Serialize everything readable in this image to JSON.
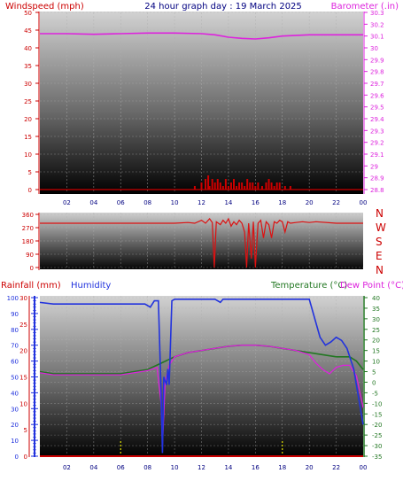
{
  "colors": {
    "wind": "#cc0000",
    "baro": "#dd22dd",
    "winddir": "#dd1111",
    "humidity": "#2233dd",
    "temp": "#227722",
    "dew": "#dd22dd",
    "rain": "#cc0000",
    "title": "#000080",
    "grid": "#b0b0b0"
  },
  "top": {
    "title": "24 hour graph day : 19 March 2025",
    "left_label": "Windspeed (mph)",
    "right_label": "Barometer (.in)"
  },
  "middle": {
    "dir_labels": [
      "N",
      "W",
      "S",
      "E",
      "N"
    ]
  },
  "bottom": {
    "rain_label": "Rainfall (mm)",
    "hum_label": "Humidity",
    "temp_label": "Temperature (°C)",
    "dew_label": "Dew Point (°C)"
  },
  "chart_data": [
    {
      "type": "line",
      "title": "24 hour graph day : 19 March 2025",
      "xlim": [
        0,
        24
      ],
      "x_ticks": [
        "02",
        "04",
        "06",
        "08",
        "10",
        "12",
        "14",
        "16",
        "18",
        "20",
        "22",
        "00"
      ],
      "left_axis": {
        "label": "Windspeed (mph)",
        "ticks": [
          0,
          5,
          10,
          15,
          20,
          25,
          30,
          35,
          40,
          45,
          50
        ],
        "ylim": [
          0,
          50
        ]
      },
      "right_axis": {
        "label": "Barometer (.in)",
        "ticks": [
          28.8,
          28.9,
          29.0,
          29.1,
          29.2,
          29.3,
          29.4,
          29.5,
          29.6,
          29.7,
          29.8,
          29.9,
          30.0,
          30.1,
          30.2,
          30.3
        ],
        "tick_labels": [
          "28.8",
          "28.9",
          "29",
          "29.1",
          "29.2",
          "29.3",
          "29.4",
          "29.5",
          "29.6",
          "29.7",
          "29.8",
          "29.9",
          "30",
          "30.1",
          "30.2",
          "30.3"
        ],
        "ylim": [
          28.8,
          30.3
        ]
      },
      "series": [
        {
          "name": "Barometer (.in)",
          "axis": "right",
          "points": [
            [
              0,
              30.12
            ],
            [
              2,
              30.12
            ],
            [
              4,
              30.115
            ],
            [
              6,
              30.12
            ],
            [
              8,
              30.125
            ],
            [
              10,
              30.125
            ],
            [
              12,
              30.12
            ],
            [
              13,
              30.11
            ],
            [
              14,
              30.09
            ],
            [
              15,
              30.08
            ],
            [
              16,
              30.075
            ],
            [
              17,
              30.085
            ],
            [
              18,
              30.1
            ],
            [
              20,
              30.11
            ],
            [
              22,
              30.11
            ],
            [
              24,
              30.11
            ]
          ]
        },
        {
          "name": "Windspeed (mph)",
          "axis": "left",
          "points": [
            [
              11.5,
              1
            ],
            [
              12.0,
              2
            ],
            [
              12.3,
              3
            ],
            [
              12.5,
              4
            ],
            [
              12.6,
              1
            ],
            [
              12.8,
              3
            ],
            [
              13.0,
              2
            ],
            [
              13.2,
              3
            ],
            [
              13.4,
              2
            ],
            [
              13.6,
              1
            ],
            [
              13.8,
              3
            ],
            [
              14.0,
              1
            ],
            [
              14.2,
              2
            ],
            [
              14.4,
              3
            ],
            [
              14.6,
              1
            ],
            [
              14.8,
              2
            ],
            [
              15.0,
              2
            ],
            [
              15.2,
              1
            ],
            [
              15.4,
              3
            ],
            [
              15.6,
              2
            ],
            [
              15.8,
              2
            ],
            [
              16.0,
              1
            ],
            [
              16.2,
              2
            ],
            [
              16.5,
              1
            ],
            [
              16.8,
              2
            ],
            [
              17.0,
              3
            ],
            [
              17.2,
              2
            ],
            [
              17.4,
              1
            ],
            [
              17.6,
              2
            ],
            [
              17.8,
              2
            ],
            [
              18.2,
              1
            ],
            [
              18.6,
              1
            ]
          ]
        }
      ]
    },
    {
      "type": "line",
      "title": "",
      "xlim": [
        0,
        24
      ],
      "left_axis": {
        "label": "",
        "ticks": [
          0,
          90,
          180,
          270,
          360
        ],
        "ylim": [
          0,
          360
        ]
      },
      "right_axis": {
        "label": "",
        "tick_labels": [
          "N",
          "W",
          "S",
          "E",
          "N"
        ]
      },
      "series": [
        {
          "name": "",
          "points": [
            [
              0,
              300
            ],
            [
              2,
              300
            ],
            [
              4,
              300
            ],
            [
              6,
              300
            ],
            [
              8,
              300
            ],
            [
              10,
              300
            ],
            [
              11.0,
              305
            ],
            [
              11.5,
              300
            ],
            [
              12.0,
              320
            ],
            [
              12.3,
              300
            ],
            [
              12.6,
              330
            ],
            [
              12.8,
              305
            ],
            [
              12.95,
              0
            ],
            [
              13.1,
              310
            ],
            [
              13.4,
              290
            ],
            [
              13.6,
              320
            ],
            [
              13.8,
              300
            ],
            [
              14.0,
              330
            ],
            [
              14.2,
              280
            ],
            [
              14.4,
              310
            ],
            [
              14.6,
              290
            ],
            [
              14.8,
              320
            ],
            [
              15.0,
              300
            ],
            [
              15.2,
              240
            ],
            [
              15.35,
              0
            ],
            [
              15.5,
              300
            ],
            [
              15.7,
              60
            ],
            [
              15.85,
              310
            ],
            [
              16.0,
              0
            ],
            [
              16.2,
              300
            ],
            [
              16.4,
              320
            ],
            [
              16.6,
              200
            ],
            [
              16.8,
              310
            ],
            [
              17.0,
              290
            ],
            [
              17.2,
              200
            ],
            [
              17.4,
              310
            ],
            [
              17.6,
              300
            ],
            [
              17.8,
              320
            ],
            [
              18.0,
              310
            ],
            [
              18.2,
              240
            ],
            [
              18.4,
              310
            ],
            [
              18.6,
              300
            ],
            [
              19.0,
              305
            ],
            [
              19.5,
              310
            ],
            [
              20.0,
              305
            ],
            [
              20.5,
              310
            ],
            [
              22,
              300
            ],
            [
              24,
              300
            ]
          ]
        }
      ]
    },
    {
      "type": "line",
      "title": "",
      "xlim": [
        0,
        24
      ],
      "x_ticks": [
        "02",
        "04",
        "06",
        "08",
        "10",
        "12",
        "14",
        "16",
        "18",
        "20",
        "22",
        "00"
      ],
      "left_axis": {
        "label": "Rainfall (mm) Humidity",
        "ticks": [
          0,
          5,
          10,
          15,
          20,
          25,
          30
        ],
        "humidity_ticks": [
          0,
          10,
          20,
          30,
          40,
          50,
          60,
          70,
          80,
          90,
          100
        ],
        "ylim": [
          0,
          30
        ]
      },
      "right_axis": {
        "label": "Temperature (°C) Dew Point (°C)",
        "ticks": [
          -35,
          -30,
          -25,
          -20,
          -15,
          -10,
          -5,
          0,
          5,
          10,
          15,
          20,
          25,
          30,
          35,
          40
        ],
        "ylim": [
          -35,
          40
        ]
      },
      "series": [
        {
          "name": "Humidity",
          "axis": "humidity",
          "points": [
            [
              0,
              97
            ],
            [
              1,
              96
            ],
            [
              2,
              96
            ],
            [
              4,
              96
            ],
            [
              6,
              96
            ],
            [
              7,
              96
            ],
            [
              7.8,
              96
            ],
            [
              8.2,
              94
            ],
            [
              8.5,
              98
            ],
            [
              8.8,
              98
            ],
            [
              9.0,
              40
            ],
            [
              9.1,
              2
            ],
            [
              9.2,
              50
            ],
            [
              9.4,
              45
            ],
            [
              9.5,
              55
            ],
            [
              9.6,
              45
            ],
            [
              9.8,
              98
            ],
            [
              10,
              99
            ],
            [
              12,
              99
            ],
            [
              13,
              99
            ],
            [
              13.4,
              97
            ],
            [
              13.6,
              99
            ],
            [
              16,
              99
            ],
            [
              18,
              99
            ],
            [
              20,
              99
            ],
            [
              20.3,
              90
            ],
            [
              20.8,
              75
            ],
            [
              21.2,
              70
            ],
            [
              21.6,
              72
            ],
            [
              22.0,
              75
            ],
            [
              22.4,
              73
            ],
            [
              22.8,
              68
            ],
            [
              23.3,
              55
            ],
            [
              23.7,
              35
            ],
            [
              24,
              20
            ]
          ]
        },
        {
          "name": "Temperature (°C)",
          "axis": "right",
          "points": [
            [
              0,
              5
            ],
            [
              1,
              4
            ],
            [
              2,
              4
            ],
            [
              4,
              4
            ],
            [
              6,
              4
            ],
            [
              7,
              5
            ],
            [
              8,
              6
            ],
            [
              9,
              9
            ],
            [
              10,
              12
            ],
            [
              11,
              14
            ],
            [
              12,
              15
            ],
            [
              13,
              16
            ],
            [
              14,
              17
            ],
            [
              15,
              17.5
            ],
            [
              16,
              17.5
            ],
            [
              17,
              17
            ],
            [
              18,
              16
            ],
            [
              19,
              15
            ],
            [
              20,
              14
            ],
            [
              21,
              13
            ],
            [
              22,
              12
            ],
            [
              23,
              12
            ],
            [
              23.5,
              10
            ],
            [
              24,
              6
            ]
          ]
        },
        {
          "name": "Dew Point (°C)",
          "axis": "right",
          "points": [
            [
              0,
              4.5
            ],
            [
              1,
              3.5
            ],
            [
              2,
              3.5
            ],
            [
              4,
              3.5
            ],
            [
              6,
              3.5
            ],
            [
              7,
              4.5
            ],
            [
              8,
              5.5
            ],
            [
              8.7,
              7
            ],
            [
              9.0,
              -10
            ],
            [
              9.1,
              -30
            ],
            [
              9.3,
              0
            ],
            [
              9.6,
              8
            ],
            [
              10,
              12
            ],
            [
              11,
              14
            ],
            [
              12,
              15
            ],
            [
              13,
              16
            ],
            [
              14,
              17
            ],
            [
              15,
              17.5
            ],
            [
              16,
              17.5
            ],
            [
              17,
              17
            ],
            [
              18,
              16
            ],
            [
              19,
              15
            ],
            [
              20,
              13
            ],
            [
              20.5,
              9
            ],
            [
              21,
              6
            ],
            [
              21.5,
              4
            ],
            [
              22,
              7
            ],
            [
              22.5,
              8
            ],
            [
              23,
              8
            ],
            [
              23.5,
              3
            ],
            [
              24,
              -12
            ]
          ]
        },
        {
          "name": "Rainfall (mm)",
          "axis": "left",
          "points": [
            [
              0,
              0
            ],
            [
              24,
              0
            ]
          ]
        }
      ]
    }
  ]
}
